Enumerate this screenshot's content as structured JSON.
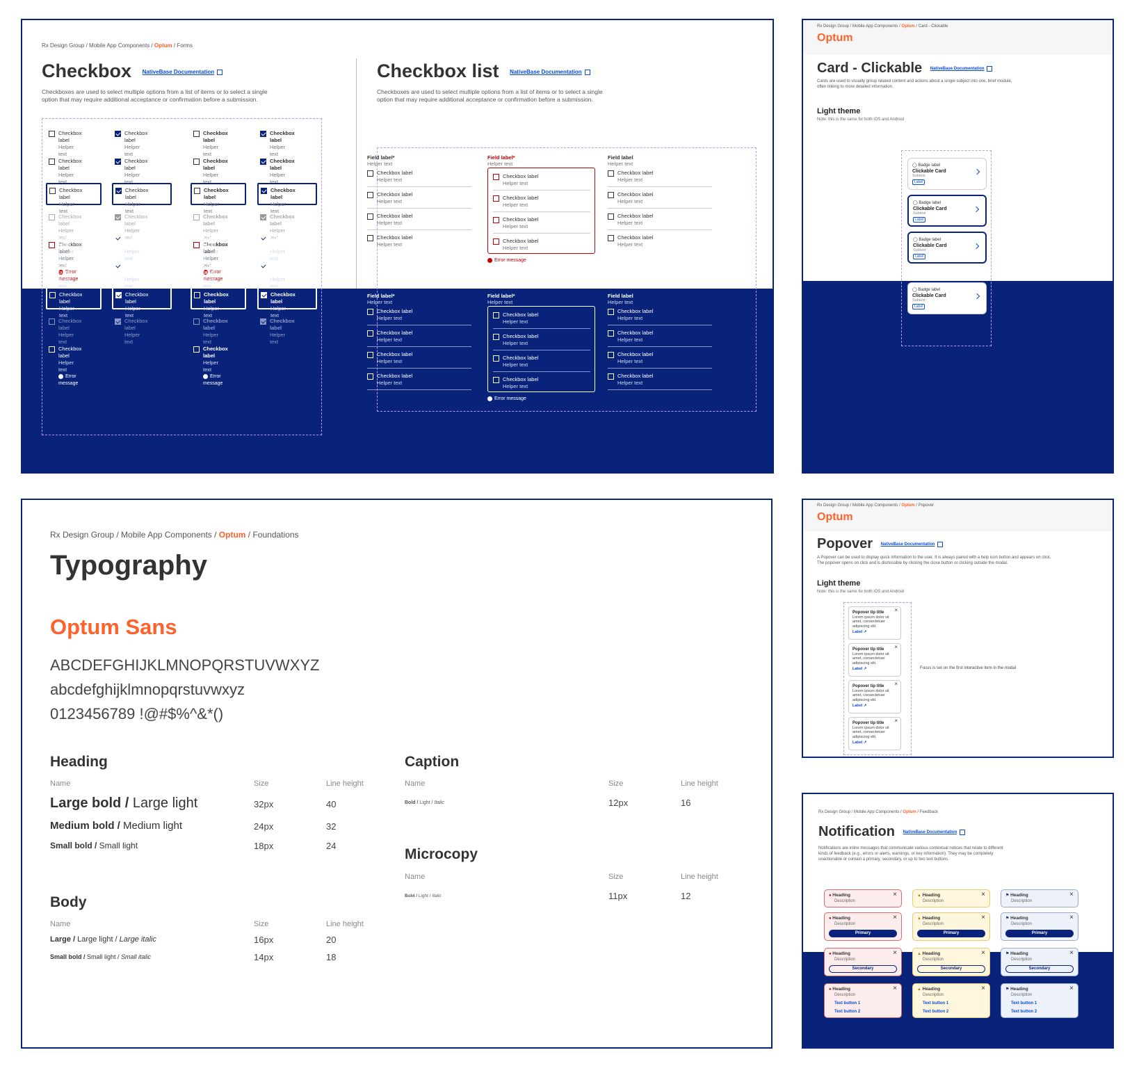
{
  "checkbox_card": {
    "breadcrumb": {
      "pre": "Rx Design Group / Mobile App Components / ",
      "brand": "Optum",
      "post": " / Forms"
    },
    "left_title": "Checkbox",
    "right_title": "Checkbox list",
    "doc_link": "NativeBase Documentation",
    "left_desc": "Checkboxes are used to select multiple options from a list of items or to select a single option that may require additional acceptance or confirmation before a submission.",
    "right_desc": "Checkboxes are used to select multiple options from a list of items or to select a single option that may require additional acceptance or confirmation before a submission.",
    "checkbox_label": "Checkbox label",
    "helper_text": "Helper text",
    "error_message": "Error message",
    "field_label_req": "Field label*",
    "field_label": "Field label"
  },
  "card_clickable": {
    "breadcrumb": {
      "pre": "Rx Design Group / Mobile App Components / ",
      "brand": "Optum",
      "post": " / Card - Clickable"
    },
    "logo": "Optum",
    "title": "Card - Clickable",
    "doc_link": "NativeBase Documentation",
    "desc": "Cards are used to visually group related content and actions about a single subject into one, brief module, often linking to more detailed information.",
    "theme": "Light theme",
    "note": "Note: this is the same for both iOS and Android",
    "badge": "Badge label",
    "card_title": "Clickable Card",
    "subtext": "Subtext",
    "label": "Label"
  },
  "typography": {
    "breadcrumb": {
      "pre": "Rx Design Group / Mobile App Components / ",
      "brand": "Optum",
      "post": " / Foundations"
    },
    "title": "Typography",
    "font_name": "Optum Sans",
    "upper": "ABCDEFGHIJKLMNOPQRSTUVWXYZ",
    "lower": "abcdefghijklmnopqrstuvwxyz",
    "digits": "0123456789 !@#$%^&*()",
    "col_name": "Name",
    "col_size": "Size",
    "col_lh": "Line height",
    "heading": {
      "title": "Heading",
      "rows": [
        {
          "bold": "Large bold /",
          "light": " Large light",
          "size": "32px",
          "lh": "40"
        },
        {
          "bold": "Medium bold /",
          "light": " Medium light",
          "size": "24px",
          "lh": "32"
        },
        {
          "bold": "Small bold /",
          "light": " Small light",
          "size": "18px",
          "lh": "24"
        }
      ]
    },
    "body": {
      "title": "Body",
      "rows": [
        {
          "bold": "Large /",
          "light": " Large light / ",
          "italic": "Large italic",
          "size": "16px",
          "lh": "20"
        },
        {
          "bold": "Small bold /",
          "light": " Small light / ",
          "italic": "Small italic",
          "size": "14px",
          "lh": "18"
        }
      ]
    },
    "caption": {
      "title": "Caption",
      "bold": "Bold /",
      "light": " Light / ",
      "italic": "Italic",
      "size": "12px",
      "lh": "16"
    },
    "microcopy": {
      "title": "Microcopy",
      "bold": "Bold /",
      "light": " Light / ",
      "italic": "Italic",
      "size": "11px",
      "lh": "12"
    }
  },
  "popover": {
    "breadcrumb": {
      "pre": "Rx Design Group / Mobile App Components / ",
      "brand": "Optum",
      "post": " / Popover"
    },
    "logo": "Optum",
    "title": "Popover",
    "doc_link": "NativeBase Documentation",
    "desc": "A Popover can be used to display quick information to the user. It is always paired with a help icon button and appears on click. The popover opens on click and is dismissible by clicking the close button or clicking outside the modal.",
    "theme": "Light theme",
    "note": "Note: this is the same for both iOS and Android",
    "tip_title": "Popover tip title",
    "tip_body": "Lorem ipsum dolor sit amet, consectetuer adipiscing elit.",
    "label": "Label",
    "focus_note": "Focus is set on the first interactive item in the modal"
  },
  "notification": {
    "breadcrumb": {
      "pre": "Rx Design Group / Mobile App Components / ",
      "brand": "Optum",
      "post": " / Feedback"
    },
    "title": "Notification",
    "doc_link": "NativeBase Documentation",
    "desc": "Notifications are inline messages that communicate various contextual notices that relate to different kinds of feedback (e.g., errors or alerts, warnings, or key information). They may be completely unactionable or contain a primary, secondary, or up to two text buttons.",
    "heading": "Heading",
    "description": "Description",
    "primary": "Primary",
    "secondary": "Secondary",
    "text_button_1": "Text button 1",
    "text_button_2": "Text button 2"
  },
  "colors": {
    "navy": "#0a237a",
    "brand_orange": "#ff612b",
    "link_blue": "#0b4bd6",
    "error": "#c40000"
  }
}
